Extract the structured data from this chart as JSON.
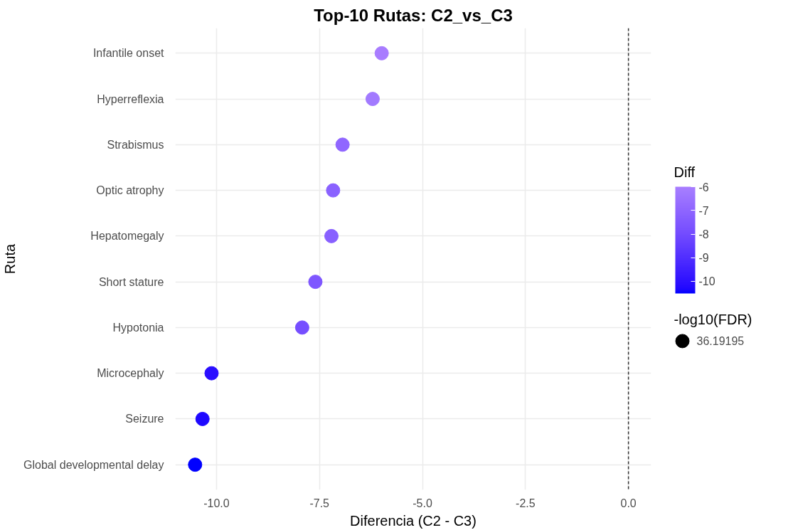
{
  "chart_data": {
    "type": "bubble",
    "title": "Top-10 Rutas: C2_vs_C3",
    "xlabel": "Diferencia (C2 - C3)",
    "ylabel": "Ruta",
    "categories": [
      "Infantile onset",
      "Hyperreflexia",
      "Strabismus",
      "Optic atrophy",
      "Hepatomegaly",
      "Short stature",
      "Hypotonia",
      "Microcephaly",
      "Seizure",
      "Global developmental delay"
    ],
    "orientation": "horizontal",
    "values": [
      -5.99,
      -6.21,
      -6.94,
      -7.17,
      -7.21,
      -7.6,
      -7.92,
      -10.12,
      -10.34,
      -10.52
    ],
    "cvalues": [
      -5.99,
      -6.21,
      -6.94,
      -7.17,
      -7.21,
      -7.6,
      -7.92,
      -10.12,
      -10.34,
      -10.52
    ],
    "colors": [
      "#a87cff",
      "#a27aff",
      "#9066ff",
      "#8a62ff",
      "#8860ff",
      "#7e56ff",
      "#764eff",
      "#2a0eff",
      "#1e08ff",
      "#0000ff"
    ],
    "sizes": [
      36.19195,
      36.19195,
      36.19195,
      36.19195,
      36.19195,
      36.19195,
      36.19195,
      36.19195,
      36.19195,
      36.19195
    ],
    "size_legend": [
      36.19195
    ],
    "legend_title": "-log10(FDR)",
    "clabel": "Diff",
    "clim": [
      -10.52,
      -5.99
    ],
    "cticks": [
      -10,
      -9,
      -8,
      -7,
      -6
    ],
    "xlim": [
      -11.0,
      0.55
    ],
    "xticks": [
      {
        "value": -10,
        "label": "-10.0"
      },
      {
        "value": -7.5,
        "label": "-7.5"
      },
      {
        "value": -5,
        "label": "-5.0"
      },
      {
        "value": -2.5,
        "label": "-2.5"
      },
      {
        "value": 0,
        "label": "0.0"
      }
    ],
    "ref_lines": [
      {
        "axis": "x",
        "value": 0,
        "color": "#333333",
        "line_style": "dashed"
      }
    ],
    "grid": true
  }
}
